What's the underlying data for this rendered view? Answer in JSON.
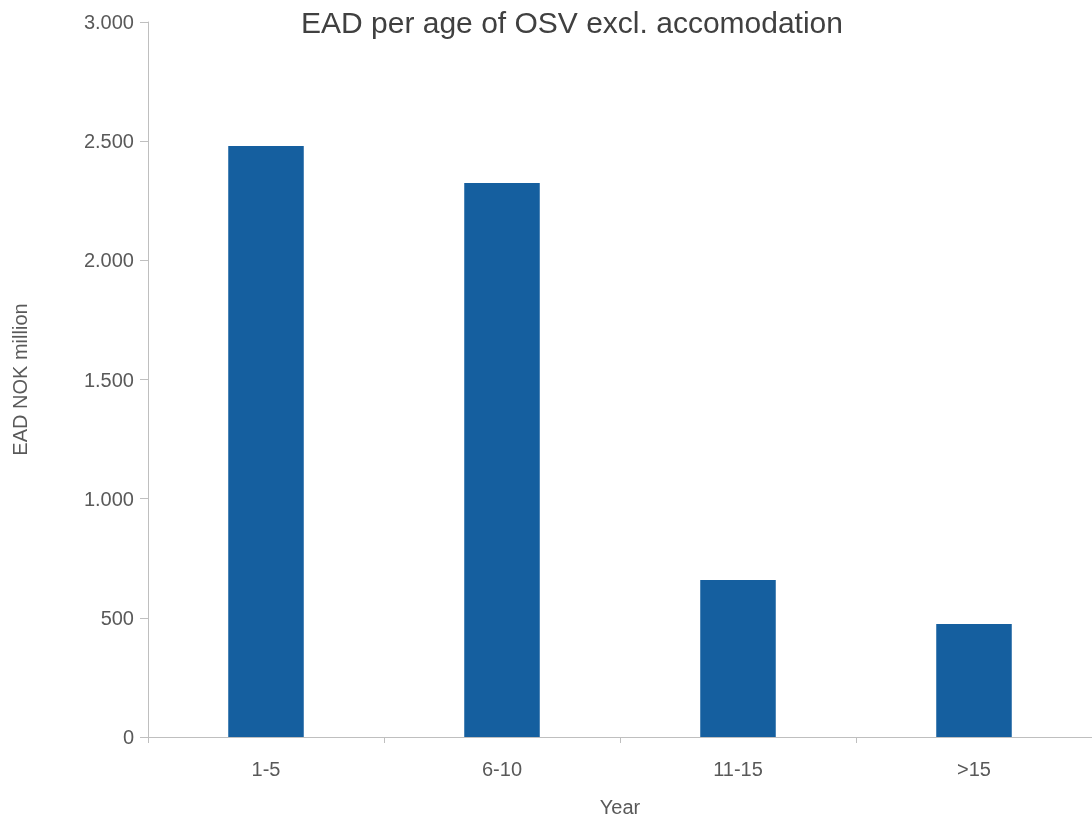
{
  "chart_data": {
    "type": "bar",
    "title": "EAD per age of OSV excl. accomodation",
    "xlabel": "Year",
    "ylabel": "EAD NOK million",
    "categories": [
      "1-5",
      "6-10",
      "11-15",
      ">15"
    ],
    "values": [
      2480,
      2325,
      659,
      474
    ],
    "color": "#155f9f",
    "ylim": [
      0,
      3000
    ],
    "yticks": [
      {
        "value": 0,
        "label": "0"
      },
      {
        "value": 500,
        "label": "500"
      },
      {
        "value": 1000,
        "label": "1.000"
      },
      {
        "value": 1500,
        "label": "1.500"
      },
      {
        "value": 2000,
        "label": "2.000"
      },
      {
        "value": 2500,
        "label": "2.500"
      },
      {
        "value": 3000,
        "label": "3.000"
      }
    ],
    "grid": false,
    "legend": false
  }
}
